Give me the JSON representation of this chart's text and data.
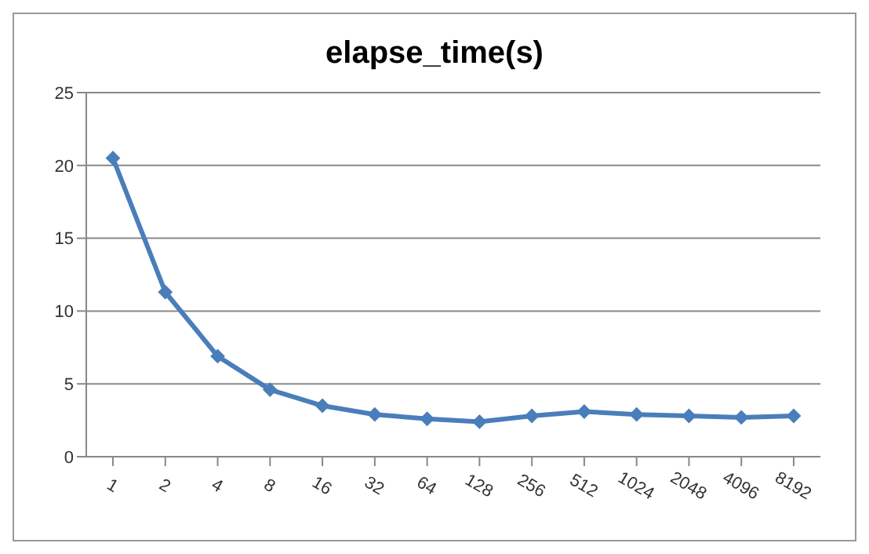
{
  "chart_data": {
    "type": "line",
    "title": "elapse_time(s)",
    "categories": [
      "1",
      "2",
      "4",
      "8",
      "16",
      "32",
      "64",
      "128",
      "256",
      "512",
      "1024",
      "2048",
      "4096",
      "8192"
    ],
    "series": [
      {
        "color": "#4a7ebb",
        "values": [
          20.5,
          11.3,
          6.9,
          4.6,
          3.5,
          2.9,
          2.6,
          2.4,
          2.8,
          3.1,
          2.9,
          2.8,
          2.7,
          2.8
        ]
      }
    ],
    "ylim": [
      0,
      25
    ],
    "yticks": [
      0,
      5,
      10,
      15,
      20,
      25
    ],
    "grid": "y",
    "marker": "diamond",
    "line_style": "solid",
    "legend": false
  }
}
